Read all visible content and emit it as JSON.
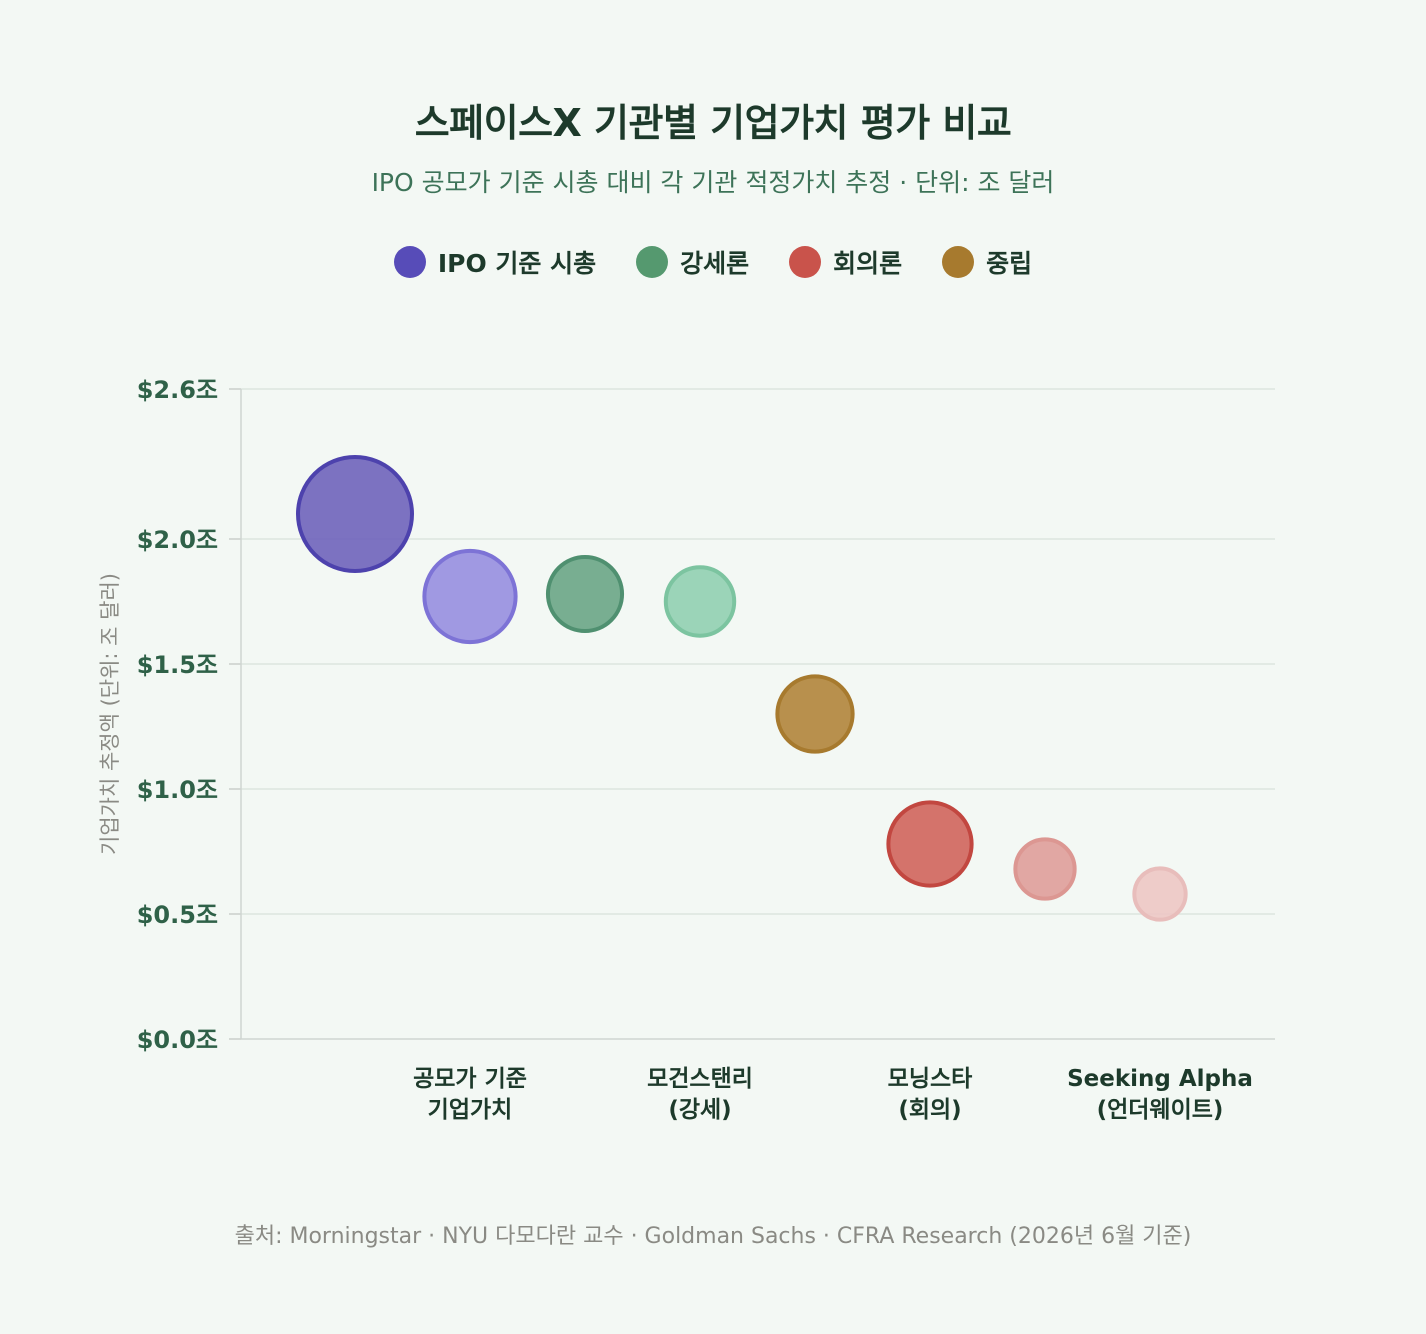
{
  "chart_data": {
    "type": "scatter",
    "title": "스페이스X 기관별 기업가치 평가 비교",
    "subtitle": "IPO 공모가 기준 시총 대비 각 기관 적정가치 추정 · 단위: 조 달러",
    "ylabel": "기업가치 추정액 (단위: 조 달러)",
    "ylim": [
      0,
      2.6
    ],
    "yticks": [
      {
        "value": 0.0,
        "label": "$0.0조"
      },
      {
        "value": 0.5,
        "label": "$0.5조"
      },
      {
        "value": 1.0,
        "label": "$1.0조"
      },
      {
        "value": 1.5,
        "label": "$1.5조"
      },
      {
        "value": 2.0,
        "label": "$2.0조"
      },
      {
        "value": 2.6,
        "label": "$2.6조"
      }
    ],
    "grid": true,
    "legend_position": "top-center",
    "legend": [
      {
        "label": "IPO 기준 시총",
        "color": "#574cb8"
      },
      {
        "label": "강세론",
        "color": "#55996f"
      },
      {
        "label": "회의론",
        "color": "#c9534b"
      },
      {
        "label": "중립",
        "color": "#a77a2e"
      }
    ],
    "x_labels": [
      {
        "index": 1,
        "lines": [
          "공모가 기준",
          "기업가치"
        ]
      },
      {
        "index": 3,
        "lines": [
          "모건스탠리",
          "(강세)"
        ]
      },
      {
        "index": 5,
        "lines": [
          "모닝스타",
          "(회의)"
        ]
      },
      {
        "index": 7,
        "lines": [
          "Seeking Alpha",
          "(언더웨이트)"
        ]
      }
    ],
    "points": [
      {
        "index": 0,
        "group": "IPO 기준 시총",
        "y": 2.1,
        "size": 1.0,
        "fill": "#6f63bb",
        "stroke": "#4d42ad",
        "opacity": 0.9
      },
      {
        "index": 1,
        "group": "IPO 기준 시총",
        "y": 1.77,
        "size": 0.8,
        "fill": "#9088de",
        "stroke": "#7d73d6",
        "opacity": 0.85
      },
      {
        "index": 2,
        "group": "강세론",
        "y": 1.78,
        "size": 0.65,
        "fill": "#6aa586",
        "stroke": "#4f9070",
        "opacity": 0.9
      },
      {
        "index": 3,
        "group": "강세론",
        "y": 1.75,
        "size": 0.6,
        "fill": "#91cfb1",
        "stroke": "#7cc4a0",
        "opacity": 0.9
      },
      {
        "index": 4,
        "group": "중립",
        "y": 1.3,
        "size": 0.66,
        "fill": "#b48a43",
        "stroke": "#a77a2e",
        "opacity": 0.95
      },
      {
        "index": 5,
        "group": "회의론",
        "y": 0.78,
        "size": 0.73,
        "fill": "#d0645c",
        "stroke": "#c24740",
        "opacity": 0.9
      },
      {
        "index": 6,
        "group": "회의론",
        "y": 0.68,
        "size": 0.52,
        "fill": "#df9d9a",
        "stroke": "#dc9792",
        "opacity": 0.9
      },
      {
        "index": 7,
        "group": "회의론",
        "y": 0.58,
        "size": 0.45,
        "fill": "#edc6c4",
        "stroke": "#e8bdbb",
        "opacity": 0.9
      }
    ]
  },
  "source": "출처: Morningstar · NYU 다모다란 교수 · Goldman Sachs · CFRA Research (2026년 6월 기준)"
}
